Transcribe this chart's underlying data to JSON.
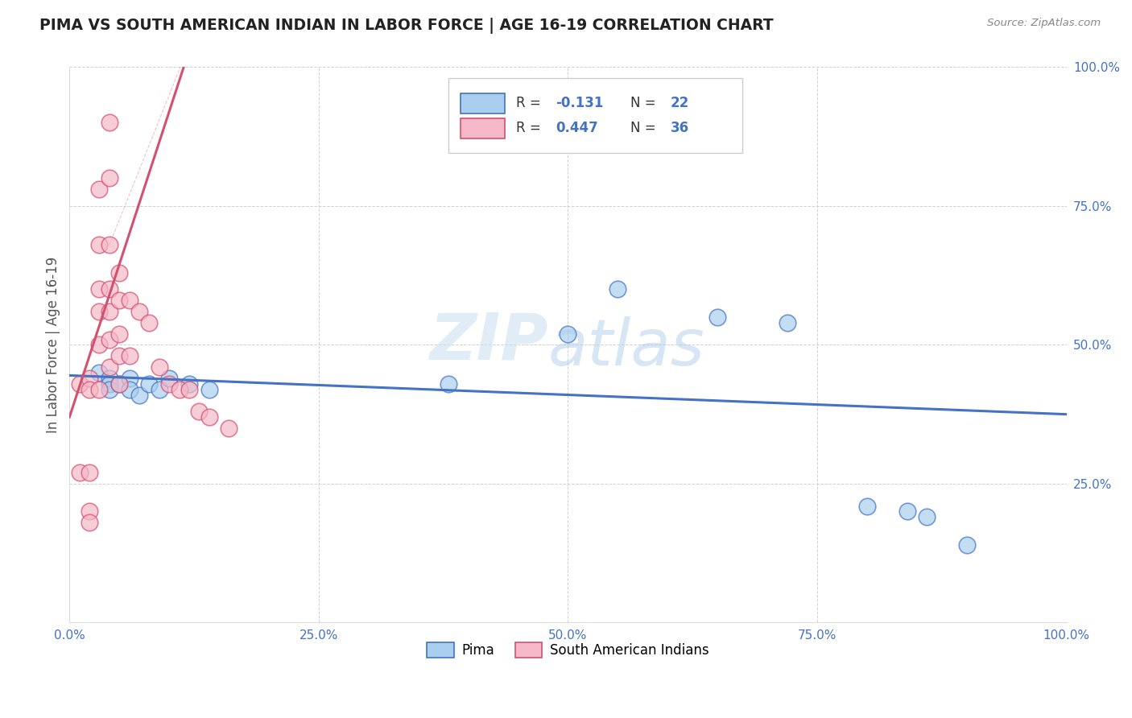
{
  "title": "PIMA VS SOUTH AMERICAN INDIAN IN LABOR FORCE | AGE 16-19 CORRELATION CHART",
  "source": "Source: ZipAtlas.com",
  "ylabel": "In Labor Force | Age 16-19",
  "xlim": [
    0.0,
    1.0
  ],
  "ylim": [
    0.0,
    1.0
  ],
  "xticks": [
    0.0,
    0.25,
    0.5,
    0.75,
    1.0
  ],
  "yticks": [
    0.0,
    0.25,
    0.5,
    0.75,
    1.0
  ],
  "pima_color": "#aacfee",
  "south_color": "#f5b8c8",
  "pima_edge_color": "#4472c4",
  "south_edge_color": "#d45070",
  "trend_pima_color": "#4472c4",
  "trend_south_color": "#d45070",
  "r_pima": "-0.131",
  "n_pima": "22",
  "r_south": "0.447",
  "n_south": "36",
  "pima_x": [
    0.03,
    0.04,
    0.04,
    0.04,
    0.05,
    0.06,
    0.06,
    0.07,
    0.08,
    0.09,
    0.1,
    0.12,
    0.14,
    0.38,
    0.5,
    0.55,
    0.65,
    0.72,
    0.8,
    0.84,
    0.86,
    0.9
  ],
  "pima_y": [
    0.45,
    0.44,
    0.43,
    0.42,
    0.43,
    0.44,
    0.42,
    0.41,
    0.43,
    0.42,
    0.44,
    0.43,
    0.42,
    0.43,
    0.52,
    0.6,
    0.55,
    0.54,
    0.21,
    0.2,
    0.19,
    0.14
  ],
  "south_x": [
    0.01,
    0.01,
    0.02,
    0.02,
    0.02,
    0.02,
    0.02,
    0.03,
    0.03,
    0.03,
    0.03,
    0.03,
    0.03,
    0.04,
    0.04,
    0.04,
    0.04,
    0.04,
    0.04,
    0.04,
    0.05,
    0.05,
    0.05,
    0.05,
    0.05,
    0.06,
    0.06,
    0.07,
    0.08,
    0.09,
    0.1,
    0.11,
    0.12,
    0.13,
    0.14,
    0.16
  ],
  "south_y": [
    0.43,
    0.27,
    0.44,
    0.42,
    0.27,
    0.2,
    0.18,
    0.78,
    0.68,
    0.6,
    0.56,
    0.5,
    0.42,
    0.9,
    0.8,
    0.68,
    0.6,
    0.56,
    0.51,
    0.46,
    0.63,
    0.58,
    0.52,
    0.48,
    0.43,
    0.58,
    0.48,
    0.56,
    0.54,
    0.46,
    0.43,
    0.42,
    0.42,
    0.38,
    0.37,
    0.35
  ],
  "watermark_zip": "ZIP",
  "watermark_atlas": "atlas",
  "background_color": "#ffffff",
  "grid_color": "#cccccc",
  "tick_color": "#4472c4",
  "label_color": "#555555"
}
